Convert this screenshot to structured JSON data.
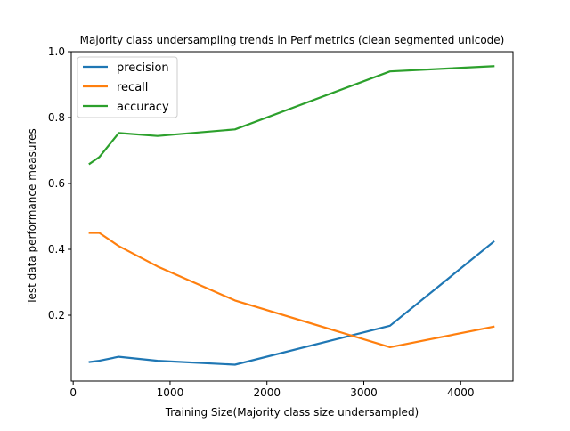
{
  "chart_data": {
    "type": "line",
    "title": "Majority class undersampling trends in Perf metrics (clean segmented unicode)",
    "xlabel": "Training Size(Majority class size undersampled)",
    "ylabel": "Test data performance measures",
    "xlim": [
      -20,
      4540
    ],
    "ylim": [
      0.0,
      1.0
    ],
    "x_ticks": [
      0,
      1000,
      2000,
      3000,
      4000
    ],
    "y_ticks": [
      0.2,
      0.4,
      0.6,
      0.8,
      1.0
    ],
    "x": [
      170,
      270,
      470,
      870,
      1670,
      3270,
      4340
    ],
    "legend_position": "upper-left",
    "grid": false,
    "series": [
      {
        "name": "precision",
        "color": "#1f77b4",
        "values": [
          0.058,
          0.062,
          0.074,
          0.062,
          0.05,
          0.168,
          0.423
        ]
      },
      {
        "name": "recall",
        "color": "#ff7f0e",
        "values": [
          0.45,
          0.45,
          0.41,
          0.348,
          0.245,
          0.103,
          0.165
        ]
      },
      {
        "name": "accuracy",
        "color": "#2ca02c",
        "values": [
          0.66,
          0.68,
          0.753,
          0.744,
          0.764,
          0.94,
          0.956
        ]
      }
    ]
  }
}
